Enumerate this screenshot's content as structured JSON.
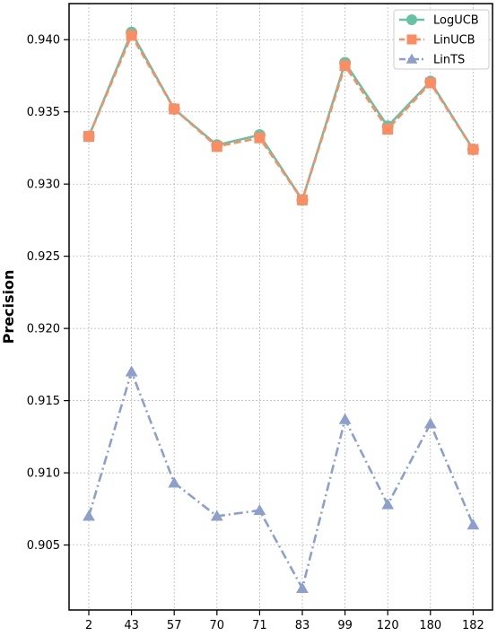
{
  "chart_data": {
    "type": "line",
    "title": "",
    "xlabel": "",
    "ylabel": "Precision",
    "categories": [
      "2",
      "43",
      "57",
      "70",
      "71",
      "83",
      "99",
      "120",
      "180",
      "182"
    ],
    "ylim": [
      0.9005,
      0.9425
    ],
    "yticks": [
      "0.905",
      "0.910",
      "0.915",
      "0.920",
      "0.925",
      "0.930",
      "0.935",
      "0.940"
    ],
    "grid": true,
    "legend_position": "top-right",
    "series": [
      {
        "name": "LogUCB",
        "color": "#66c2a5",
        "marker": "circle",
        "linestyle": "solid",
        "values": [
          0.9333,
          0.9405,
          0.9352,
          0.9327,
          0.9334,
          0.9289,
          0.9384,
          0.934,
          0.9371,
          0.9324
        ]
      },
      {
        "name": "LinUCB",
        "color": "#fc8d62",
        "marker": "square",
        "linestyle": "dashed",
        "values": [
          0.9333,
          0.9403,
          0.9352,
          0.9326,
          0.9332,
          0.9289,
          0.9382,
          0.9338,
          0.937,
          0.9324
        ]
      },
      {
        "name": "LinTS",
        "color": "#8da0cb",
        "marker": "triangle",
        "linestyle": "dashdot",
        "values": [
          0.907,
          0.917,
          0.9093,
          0.907,
          0.9074,
          0.902,
          0.9137,
          0.9078,
          0.9134,
          0.9064
        ]
      }
    ]
  }
}
